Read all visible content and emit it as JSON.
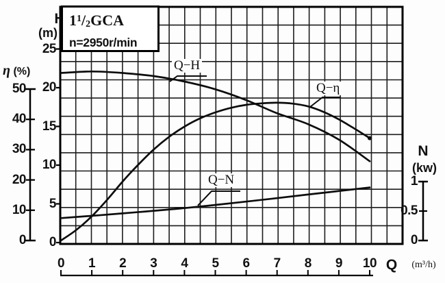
{
  "title_box": {
    "model_digit": "1",
    "model_sup": "1",
    "model_slash": "/",
    "model_sub": "2",
    "model_name": "GCA",
    "speed": "n=2950r/min"
  },
  "axes": {
    "h": {
      "title": "H",
      "unit": "(m)",
      "ticks": [
        "25",
        "20",
        "15",
        "10",
        "5",
        "0"
      ],
      "tick_values": [
        25,
        20,
        15,
        10,
        5,
        0
      ]
    },
    "eta": {
      "symbol": "η",
      "unit": "(%)",
      "ticks": [
        "50",
        "40",
        "30",
        "20",
        "10",
        "0"
      ],
      "tick_values": [
        50,
        40,
        30,
        20,
        10,
        0
      ]
    },
    "n": {
      "title": "N",
      "unit": "(kw)",
      "ticks": [
        "1",
        "0.5",
        "0"
      ],
      "tick_values": [
        1,
        0.5,
        0
      ]
    },
    "q": {
      "title": "Q",
      "unit": "(m³/h)",
      "ticks": [
        "0",
        "1",
        "2",
        "3",
        "4",
        "5",
        "6",
        "7",
        "8",
        "9",
        "10"
      ],
      "tick_values": [
        0,
        1,
        2,
        3,
        4,
        5,
        6,
        7,
        8,
        9,
        10
      ]
    }
  },
  "chart_data": {
    "type": "line",
    "title": "1 1/2 GCA pump performance curves, n = 2950 r/min",
    "xlabel": "Q (m³/h)",
    "x_range": [
      0,
      10
    ],
    "grid": true,
    "axes": {
      "H": {
        "label": "H (m)",
        "range": [
          0,
          25
        ],
        "side": "left"
      },
      "eta": {
        "label": "η (%)",
        "range": [
          0,
          50
        ],
        "side": "outer-left"
      },
      "N": {
        "label": "N (kw)",
        "range": [
          0,
          1
        ],
        "side": "right"
      }
    },
    "series": [
      {
        "name": "Q-H",
        "label": "Q−H",
        "axis": "H",
        "x": [
          0,
          1,
          2,
          3,
          4,
          5,
          6,
          7,
          8,
          9,
          10
        ],
        "y": [
          21.9,
          22.1,
          21.9,
          21.5,
          20.8,
          19.8,
          18.4,
          16.7,
          15.3,
          13.3,
          10.5
        ]
      },
      {
        "name": "Q-eta",
        "label": "Q−η",
        "axis": "eta",
        "x": [
          0,
          0.5,
          1,
          1.5,
          2,
          2.5,
          3,
          3.5,
          4,
          4.5,
          5,
          5.5,
          6,
          6.5,
          7,
          7.5,
          8,
          8.5,
          9,
          9.5,
          10
        ],
        "y": [
          0,
          3.5,
          8,
          13.5,
          19.5,
          25,
          30,
          34.2,
          37.6,
          40.3,
          42.3,
          43.8,
          44.8,
          45.3,
          45.5,
          45.2,
          44.3,
          42.5,
          40,
          37,
          33.8
        ]
      },
      {
        "name": "Q-N",
        "label": "Q−N",
        "axis": "N",
        "x": [
          0,
          2,
          4,
          6,
          8,
          10
        ],
        "y": [
          0.38,
          0.46,
          0.55,
          0.66,
          0.78,
          0.9
        ]
      }
    ]
  }
}
